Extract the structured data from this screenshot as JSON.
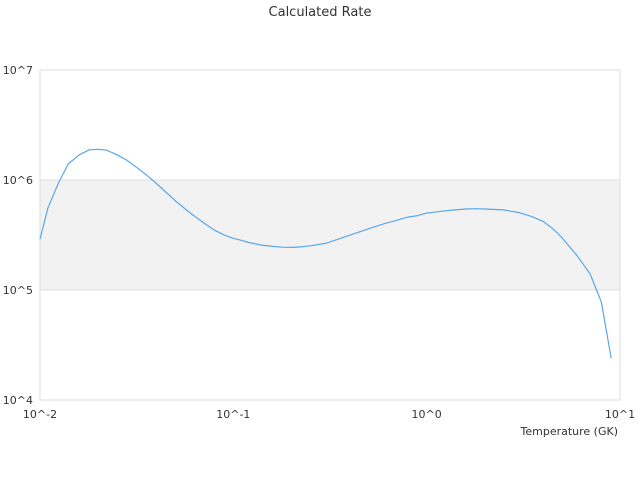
{
  "chart_data": {
    "type": "line",
    "title": "Calculated Rate",
    "xlabel": "Temperature (GK)",
    "ylabel": "",
    "xscale": "log",
    "yscale": "log",
    "xlim": [
      0.01,
      10
    ],
    "ylim": [
      10000,
      10000000
    ],
    "x_tick_values": [
      0.01,
      0.1,
      1,
      10
    ],
    "x_tick_labels": [
      "10^-2",
      "10^-1",
      "10^0",
      "10^1"
    ],
    "y_tick_values": [
      10000,
      100000,
      1000000,
      10000000
    ],
    "y_tick_labels": [
      "10^4",
      "10^5",
      "10^6",
      "10^7"
    ],
    "grid": true,
    "shaded_band": [
      100000,
      1000000
    ],
    "legend": "none",
    "colors": {
      "line": "#5aa7e8",
      "band": "#f2f2f2",
      "grid": "#dddddd",
      "text": "#333333"
    },
    "series": [
      {
        "x": [
          0.01,
          0.011,
          0.0125,
          0.014,
          0.016,
          0.018,
          0.02,
          0.022,
          0.025,
          0.028,
          0.032,
          0.036,
          0.04,
          0.045,
          0.05,
          0.06,
          0.07,
          0.08,
          0.09,
          0.1,
          0.11,
          0.12,
          0.14,
          0.16,
          0.18,
          0.2,
          0.22,
          0.25,
          0.3,
          0.35,
          0.4,
          0.5,
          0.6,
          0.7,
          0.8,
          0.9,
          1.0,
          1.1,
          1.2,
          1.4,
          1.6,
          1.8,
          2.0,
          2.2,
          2.5,
          3.0,
          3.5,
          4.0,
          4.5,
          5.0,
          6.0,
          7.0,
          8.0,
          9.0
        ],
        "y": [
          290000,
          560000,
          950000,
          1400000,
          1700000,
          1880000,
          1900000,
          1870000,
          1700000,
          1520000,
          1280000,
          1090000,
          930000,
          770000,
          650000,
          500000,
          410000,
          350000,
          315000,
          295000,
          283000,
          270000,
          256000,
          249000,
          245000,
          244000,
          246000,
          252000,
          265000,
          290000,
          315000,
          360000,
          400000,
          430000,
          460000,
          475000,
          500000,
          510000,
          520000,
          535000,
          545000,
          548000,
          545000,
          540000,
          535000,
          505000,
          465000,
          420000,
          360000,
          300000,
          205000,
          140000,
          78000,
          24000
        ]
      }
    ]
  }
}
